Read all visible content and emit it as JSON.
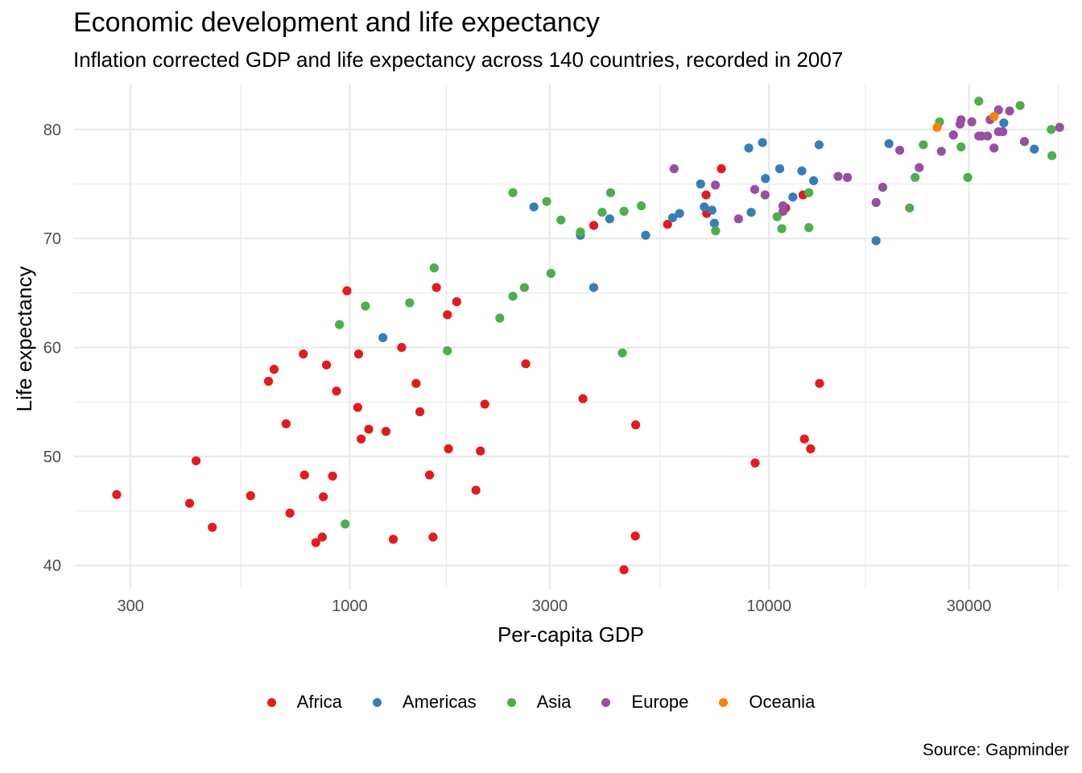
{
  "header": {
    "title": "Economic development and life expectancy",
    "subtitle": "Inflation corrected GDP and life expectancy across 140 countries, recorded in 2007"
  },
  "footer": {
    "caption": "Source: Gapminder"
  },
  "chart_data": {
    "type": "scatter",
    "title": "Economic development and life expectancy",
    "subtitle": "Inflation corrected GDP and life expectancy across 140 countries, recorded in 2007",
    "xlabel": "Per-capita GDP",
    "ylabel": "Life expectancy",
    "x_scale": "log10",
    "xlim": [
      220,
      52000
    ],
    "ylim": [
      37.8,
      84.2
    ],
    "x_ticks": [
      300,
      1000,
      3000,
      10000,
      30000
    ],
    "x_tick_labels": [
      "300",
      "1000",
      "3000",
      "10000",
      "30000"
    ],
    "x_minor_ticks": [
      550,
      1700,
      5500,
      17000,
      49000
    ],
    "y_ticks": [
      40,
      50,
      60,
      70,
      80
    ],
    "y_tick_labels": [
      "40",
      "50",
      "60",
      "70",
      "80"
    ],
    "y_minor_ticks": [
      45,
      55,
      65,
      75
    ],
    "grid": true,
    "legend_position": "bottom",
    "legend": [
      {
        "name": "Africa",
        "color": "#E41A1C"
      },
      {
        "name": "Americas",
        "color": "#377EB8"
      },
      {
        "name": "Asia",
        "color": "#4DAF4A"
      },
      {
        "name": "Europe",
        "color": "#984EA3"
      },
      {
        "name": "Oceania",
        "color": "#FF7F00"
      }
    ],
    "series": [
      {
        "name": "Africa",
        "color": "#E41A1C",
        "points": [
          [
            278,
            46.5
          ],
          [
            415,
            45.7
          ],
          [
            430,
            49.6
          ],
          [
            470,
            43.5
          ],
          [
            580,
            46.4
          ],
          [
            640,
            56.9
          ],
          [
            660,
            58.0
          ],
          [
            705,
            53.0
          ],
          [
            720,
            44.8
          ],
          [
            775,
            59.4
          ],
          [
            780,
            48.3
          ],
          [
            830,
            42.1
          ],
          [
            860,
            42.6
          ],
          [
            865,
            46.3
          ],
          [
            880,
            58.4
          ],
          [
            910,
            48.2
          ],
          [
            930,
            56.0
          ],
          [
            985,
            65.2
          ],
          [
            1050,
            59.4
          ],
          [
            1045,
            54.5
          ],
          [
            1065,
            51.6
          ],
          [
            1110,
            52.5
          ],
          [
            1220,
            52.3
          ],
          [
            1270,
            42.4
          ],
          [
            1330,
            60.0
          ],
          [
            1440,
            56.7
          ],
          [
            1470,
            54.1
          ],
          [
            1550,
            48.3
          ],
          [
            1580,
            42.6
          ],
          [
            1610,
            65.5
          ],
          [
            1710,
            63.0
          ],
          [
            1720,
            50.7
          ],
          [
            1800,
            64.2
          ],
          [
            2000,
            46.9
          ],
          [
            2050,
            50.5
          ],
          [
            2100,
            54.8
          ],
          [
            2630,
            58.5
          ],
          [
            3600,
            55.3
          ],
          [
            3820,
            71.2
          ],
          [
            4510,
            39.6
          ],
          [
            4800,
            42.7
          ],
          [
            4810,
            52.9
          ],
          [
            5730,
            71.3
          ],
          [
            7080,
            74.0
          ],
          [
            7100,
            72.3
          ],
          [
            7700,
            76.4
          ],
          [
            9270,
            49.4
          ],
          [
            10960,
            72.8
          ],
          [
            12060,
            74.0
          ],
          [
            12150,
            51.6
          ],
          [
            12570,
            50.7
          ],
          [
            13200,
            56.7
          ]
        ]
      },
      {
        "name": "Americas",
        "color": "#377EB8",
        "points": [
          [
            1200,
            60.9
          ],
          [
            2750,
            72.9
          ],
          [
            3550,
            70.3
          ],
          [
            3820,
            65.5
          ],
          [
            4170,
            71.8
          ],
          [
            5080,
            70.3
          ],
          [
            5890,
            71.9
          ],
          [
            6120,
            72.3
          ],
          [
            6870,
            75.0
          ],
          [
            7010,
            72.9
          ],
          [
            7310,
            72.6
          ],
          [
            7410,
            71.4
          ],
          [
            8950,
            78.3
          ],
          [
            9070,
            72.4
          ],
          [
            9650,
            78.8
          ],
          [
            9810,
            75.5
          ],
          [
            10610,
            76.4
          ],
          [
            11400,
            73.8
          ],
          [
            11980,
            76.2
          ],
          [
            12780,
            75.3
          ],
          [
            13170,
            78.6
          ],
          [
            18010,
            69.8
          ],
          [
            19330,
            78.7
          ],
          [
            36320,
            80.6
          ],
          [
            42950,
            78.2
          ]
        ]
      },
      {
        "name": "Asia",
        "color": "#4DAF4A",
        "points": [
          [
            945,
            62.1
          ],
          [
            975,
            43.8
          ],
          [
            1090,
            63.8
          ],
          [
            1390,
            64.1
          ],
          [
            1590,
            67.3
          ],
          [
            1710,
            59.7
          ],
          [
            2280,
            62.7
          ],
          [
            2450,
            74.2
          ],
          [
            2450,
            64.7
          ],
          [
            2610,
            65.5
          ],
          [
            2950,
            73.4
          ],
          [
            3020,
            66.8
          ],
          [
            3190,
            71.7
          ],
          [
            3550,
            70.6
          ],
          [
            4000,
            72.4
          ],
          [
            4190,
            74.2
          ],
          [
            4470,
            59.5
          ],
          [
            4510,
            72.5
          ],
          [
            4960,
            73.0
          ],
          [
            7460,
            70.7
          ],
          [
            10460,
            72.0
          ],
          [
            10730,
            70.9
          ],
          [
            12450,
            74.2
          ],
          [
            12450,
            71.0
          ],
          [
            21650,
            72.8
          ],
          [
            22320,
            75.6
          ],
          [
            23350,
            78.6
          ],
          [
            25520,
            80.7
          ],
          [
            28720,
            78.4
          ],
          [
            29800,
            75.6
          ],
          [
            31660,
            82.6
          ],
          [
            39720,
            82.2
          ],
          [
            47140,
            80.0
          ],
          [
            47310,
            77.6
          ]
        ]
      },
      {
        "name": "Europe",
        "color": "#984EA3",
        "points": [
          [
            5940,
            76.4
          ],
          [
            7450,
            74.9
          ],
          [
            8460,
            71.8
          ],
          [
            9250,
            74.5
          ],
          [
            9790,
            74.0
          ],
          [
            10800,
            73.0
          ],
          [
            10810,
            72.5
          ],
          [
            14620,
            75.7
          ],
          [
            15390,
            75.6
          ],
          [
            18010,
            73.3
          ],
          [
            18680,
            74.7
          ],
          [
            20510,
            78.1
          ],
          [
            22830,
            76.5
          ],
          [
            25770,
            78.0
          ],
          [
            27540,
            79.5
          ],
          [
            28570,
            80.5
          ],
          [
            28720,
            80.9
          ],
          [
            30470,
            80.7
          ],
          [
            31650,
            79.4
          ],
          [
            32170,
            79.4
          ],
          [
            33200,
            79.4
          ],
          [
            33690,
            80.9
          ],
          [
            34430,
            78.3
          ],
          [
            35280,
            79.8
          ],
          [
            36130,
            79.8
          ],
          [
            35280,
            81.8
          ],
          [
            37500,
            81.7
          ],
          [
            40680,
            78.9
          ],
          [
            49360,
            80.2
          ]
        ]
      },
      {
        "name": "Oceania",
        "color": "#FF7F00",
        "points": [
          [
            25190,
            80.2
          ],
          [
            34440,
            81.2
          ]
        ]
      }
    ]
  }
}
